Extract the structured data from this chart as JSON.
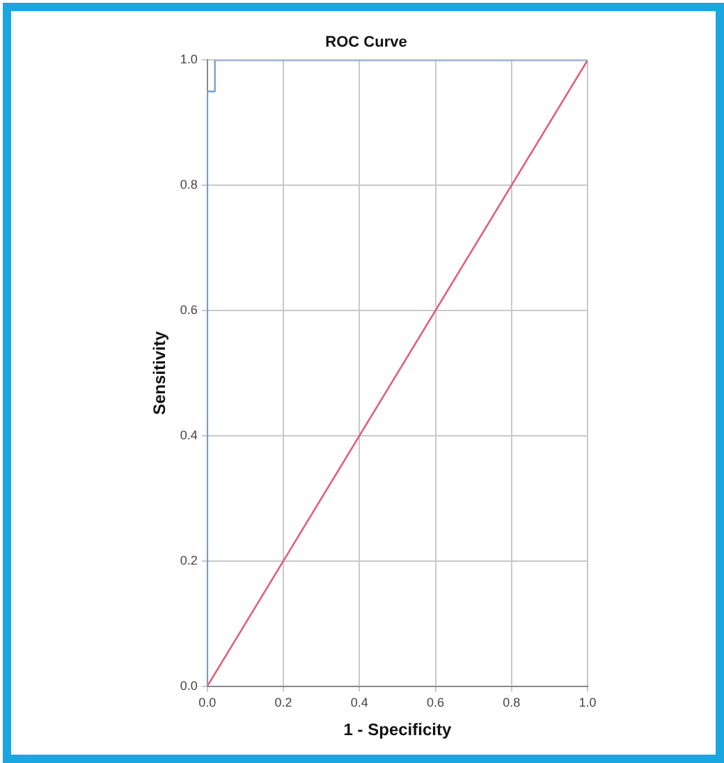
{
  "chart_data": {
    "type": "line",
    "title": "ROC Curve",
    "xlabel": "1 - Specificity",
    "ylabel": "Sensitivity",
    "xlim": [
      0,
      1
    ],
    "ylim": [
      0,
      1
    ],
    "xticks": [
      {
        "value": 0,
        "label": "0.0"
      },
      {
        "value": 0.2,
        "label": "0.2"
      },
      {
        "value": 0.4,
        "label": "0.4"
      },
      {
        "value": 0.6,
        "label": "0.6"
      },
      {
        "value": 0.8,
        "label": "0.8"
      },
      {
        "value": 1,
        "label": "1.0"
      }
    ],
    "yticks": [
      {
        "value": 0,
        "label": "0.0"
      },
      {
        "value": 0.2,
        "label": "0.2"
      },
      {
        "value": 0.4,
        "label": "0.4"
      },
      {
        "value": 0.6,
        "label": "0.6"
      },
      {
        "value": 0.8,
        "label": "0.8"
      },
      {
        "value": 1,
        "label": "1.0"
      }
    ],
    "grid": true,
    "legend": false,
    "marker": "none",
    "line_style": "solid",
    "series": [
      {
        "color": "#7ea6d8",
        "x": [
          0,
          0,
          0.02,
          0.02,
          1
        ],
        "values": [
          0,
          0.95,
          0.95,
          1,
          1
        ]
      },
      {
        "color": "#e0607a",
        "x": [
          0,
          1
        ],
        "values": [
          0,
          1
        ]
      }
    ]
  }
}
